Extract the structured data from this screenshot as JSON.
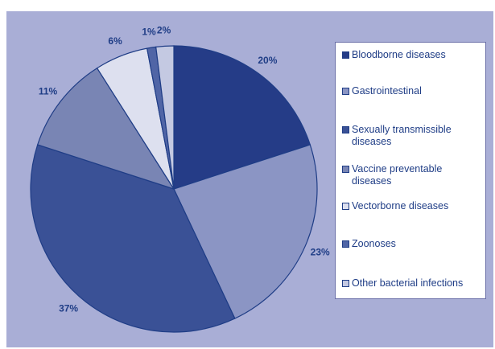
{
  "chart_data": {
    "type": "pie",
    "slices": [
      {
        "name": "Bloodborne diseases",
        "value": 20,
        "label": "20%",
        "color": "#253c87"
      },
      {
        "name": "Gastrointestinal",
        "value": 23,
        "label": "23%",
        "color": "#8b95c4"
      },
      {
        "name": "Sexually transmissible diseases",
        "value": 37,
        "label": "37%",
        "color": "#3a5196"
      },
      {
        "name": "Vaccine preventable diseases",
        "value": 11,
        "label": "11%",
        "color": "#7985b4"
      },
      {
        "name": "Vectorborne diseases",
        "value": 6,
        "label": "6%",
        "color": "#dde0ef"
      },
      {
        "name": "Zoonoses",
        "value": 1,
        "label": "1%",
        "color": "#5065a6"
      },
      {
        "name": "Other bacterial infections",
        "value": 2,
        "label": "2%",
        "color": "#c4c9e2"
      }
    ],
    "legend": {
      "placement": "right",
      "items": [
        "Bloodborne diseases",
        "Gastrointestinal",
        "Sexually transmissible diseases",
        "Vaccine preventable diseases",
        "Vectorborne diseases",
        "Zoonoses",
        "Other bacterial infections"
      ]
    },
    "colors": {
      "background": "#a9aed6",
      "text": "#1f3d86",
      "slice_border": "#1f3d86"
    }
  }
}
